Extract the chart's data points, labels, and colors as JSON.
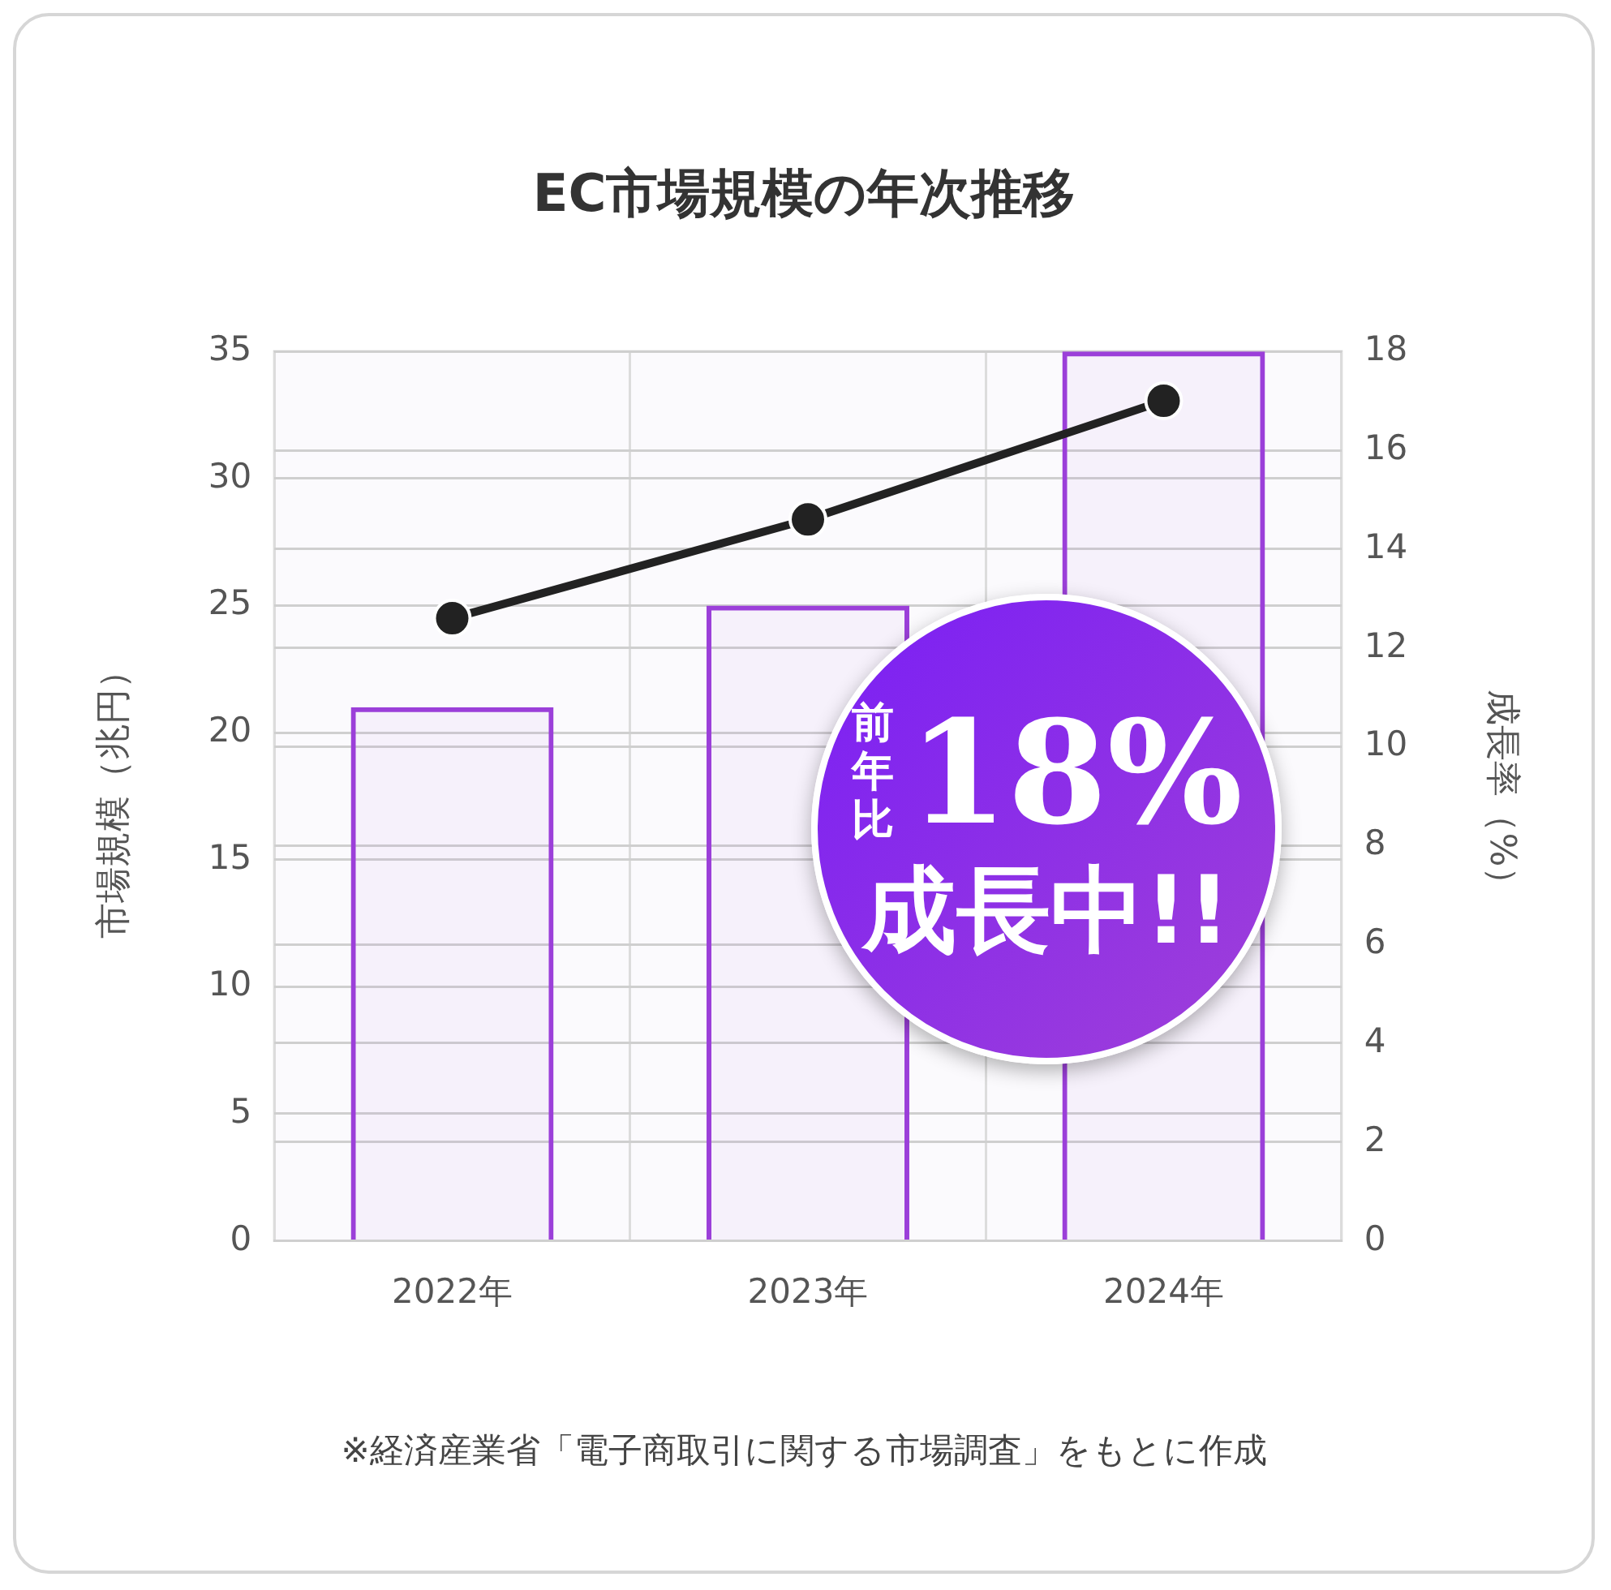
{
  "chart_data": {
    "type": "bar",
    "title": "EC市場規模の年次推移",
    "ylabel": "市場規模（兆円）",
    "y2label": "成長率（%）",
    "categories": [
      "2022年",
      "2023年",
      "2024年"
    ],
    "series": [
      {
        "color": "#9b3fd9",
        "values": [
          21,
          25,
          35
        ]
      },
      {
        "type": "line",
        "axis": "y2",
        "color": "#222222",
        "values": [
          12.6,
          14.6,
          17.0
        ]
      }
    ],
    "ylim": [
      0,
      35
    ],
    "yticks": [
      0,
      5,
      10,
      15,
      20,
      25,
      30,
      35
    ],
    "y2lim": [
      0,
      18
    ],
    "y2ticks": [
      0,
      2,
      4,
      6,
      8,
      10,
      12,
      14,
      16,
      18
    ],
    "grid": true,
    "legend": false,
    "marker": "circle",
    "line_style": "solid",
    "annotations": [
      "前年比",
      "18%",
      "成長中!!",
      "※経済産業省「電子商取引に関する市場調査」をもとに作成"
    ]
  }
}
